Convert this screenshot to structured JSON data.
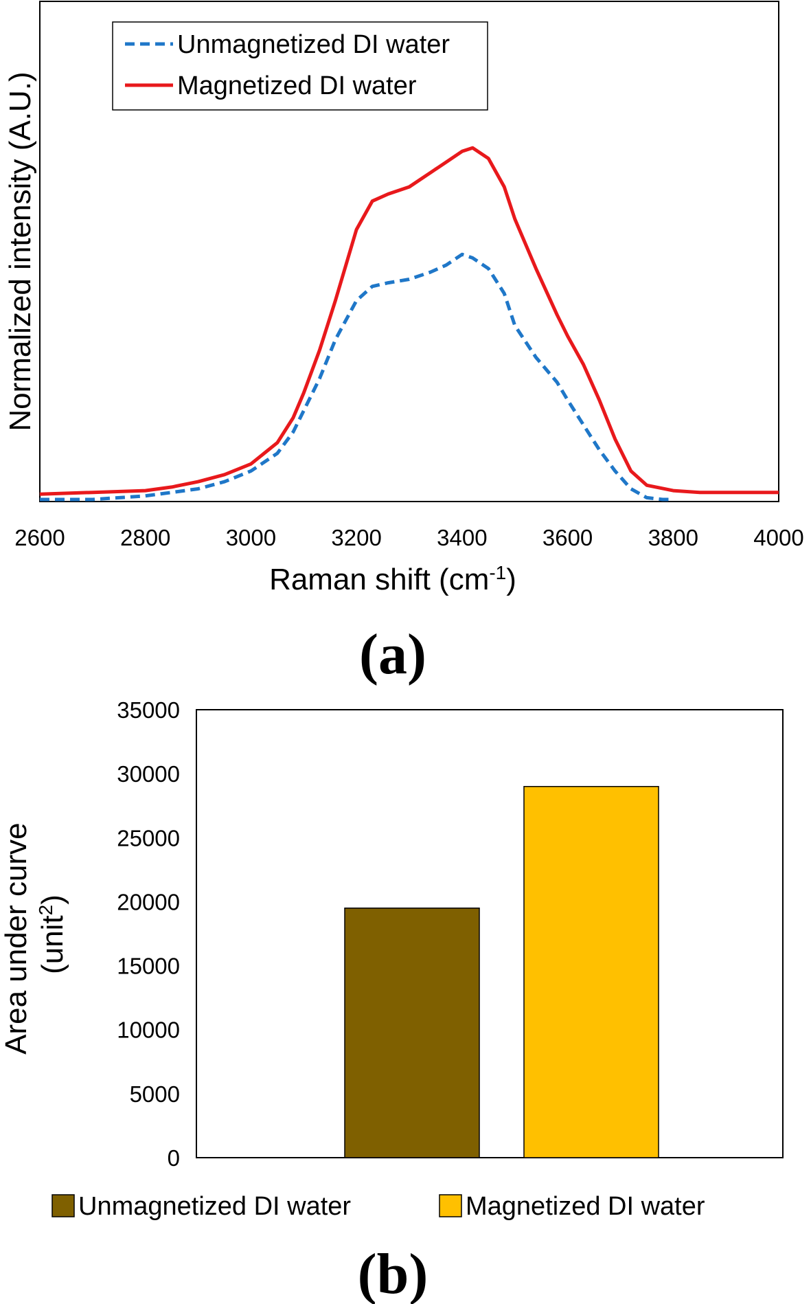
{
  "chart_data": [
    {
      "type": "line",
      "panel_label": "(a)",
      "xlabel": "Raman shift (cm",
      "xlabel_sup": "-1",
      "xlabel_end": ")",
      "ylabel": "Normalized intensity (A.U.)",
      "xlim": [
        2600,
        4000
      ],
      "ylim": [
        0,
        1
      ],
      "xticks": [
        "2600",
        "2800",
        "3000",
        "3200",
        "3400",
        "3600",
        "3800",
        "4000"
      ],
      "legend_position": "top-left",
      "series": [
        {
          "name": "Unmagnetized DI water",
          "color": "#1F77C8",
          "style": "dashed",
          "x": [
            2600,
            2700,
            2800,
            2850,
            2900,
            2950,
            3000,
            3050,
            3080,
            3100,
            3130,
            3160,
            3200,
            3230,
            3260,
            3300,
            3340,
            3370,
            3400,
            3420,
            3450,
            3480,
            3500,
            3540,
            3580,
            3600,
            3630,
            3660,
            3690,
            3720,
            3750,
            3780,
            3800
          ],
          "y": [
            0.0,
            0.0,
            0.01,
            0.02,
            0.03,
            0.05,
            0.08,
            0.13,
            0.19,
            0.25,
            0.34,
            0.45,
            0.56,
            0.6,
            0.61,
            0.62,
            0.64,
            0.66,
            0.69,
            0.68,
            0.65,
            0.58,
            0.49,
            0.4,
            0.33,
            0.28,
            0.21,
            0.14,
            0.08,
            0.03,
            0.005,
            0.0,
            0.0
          ]
        },
        {
          "name": "Magnetized DI water",
          "color": "#E8191C",
          "style": "solid",
          "x": [
            2600,
            2700,
            2800,
            2850,
            2900,
            2950,
            3000,
            3050,
            3080,
            3100,
            3130,
            3160,
            3200,
            3230,
            3260,
            3300,
            3340,
            3370,
            3400,
            3420,
            3450,
            3480,
            3500,
            3540,
            3580,
            3600,
            3630,
            3660,
            3690,
            3720,
            3750,
            3800,
            3850,
            3900,
            4000
          ],
          "y": [
            0.015,
            0.02,
            0.025,
            0.035,
            0.05,
            0.07,
            0.1,
            0.16,
            0.23,
            0.3,
            0.42,
            0.56,
            0.76,
            0.84,
            0.86,
            0.88,
            0.92,
            0.95,
            0.98,
            0.99,
            0.96,
            0.88,
            0.79,
            0.65,
            0.52,
            0.46,
            0.38,
            0.28,
            0.17,
            0.08,
            0.04,
            0.025,
            0.02,
            0.02,
            0.02
          ]
        }
      ]
    },
    {
      "type": "bar",
      "panel_label": "(b)",
      "ylabel_line1": "Area under curve",
      "ylabel_line2": "(unit",
      "ylabel_sup": "2",
      "ylabel_end": ")",
      "ylim": [
        0,
        35000
      ],
      "yticks": [
        "0",
        "5000",
        "10000",
        "15000",
        "20000",
        "25000",
        "30000",
        "35000"
      ],
      "legend_position": "bottom",
      "categories": [
        "Unmagnetized DI water",
        "Magnetized DI water"
      ],
      "values": [
        19500,
        29000
      ],
      "colors": [
        "#7F6000",
        "#FFC000"
      ]
    }
  ]
}
